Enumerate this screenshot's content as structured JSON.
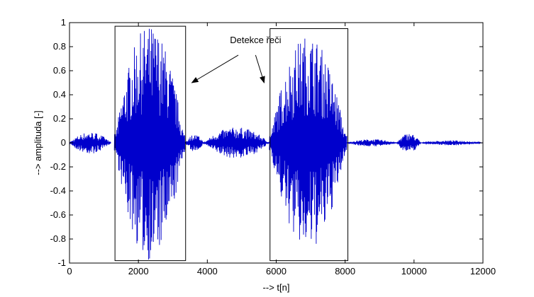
{
  "chart_data": {
    "type": "line",
    "title": "",
    "xlabel": "--> t[n]",
    "ylabel": "--> amplituda [-]",
    "xlim": [
      0,
      12000
    ],
    "ylim": [
      -1,
      1
    ],
    "xticks": [
      0,
      2000,
      4000,
      6000,
      8000,
      10000,
      12000
    ],
    "yticks": [
      -1,
      -0.8,
      -0.6,
      -0.4,
      -0.2,
      0,
      0.2,
      0.4,
      0.6,
      0.8,
      1
    ],
    "grid": false,
    "series": [
      {
        "name": "",
        "color": "#0000cc",
        "segments": [
          {
            "start": 0,
            "end": 1200,
            "amplitude": 0.09
          },
          {
            "start": 1300,
            "end": 3350,
            "amplitude": 0.98
          },
          {
            "start": 3350,
            "end": 3900,
            "amplitude": 0.07
          },
          {
            "start": 3900,
            "end": 5800,
            "amplitude": 0.13
          },
          {
            "start": 5800,
            "end": 8050,
            "amplitude": 0.9
          },
          {
            "start": 8050,
            "end": 9500,
            "amplitude": 0.03
          },
          {
            "start": 9500,
            "end": 10200,
            "amplitude": 0.08
          },
          {
            "start": 10200,
            "end": 12000,
            "amplitude": 0.02
          }
        ]
      }
    ],
    "annotations": [
      {
        "text": "Detekce řeči",
        "x": 5400,
        "y": 0.83
      },
      {
        "type": "box",
        "x0": 1320,
        "x1": 3370,
        "y0": -0.98,
        "y1": 0.97
      },
      {
        "type": "box",
        "x0": 5820,
        "x1": 8080,
        "y0": -0.98,
        "y1": 0.95
      },
      {
        "type": "arrow",
        "from": [
          4900,
          0.73
        ],
        "to": [
          3550,
          0.5
        ]
      },
      {
        "type": "arrow",
        "from": [
          5400,
          0.73
        ],
        "to": [
          5650,
          0.5
        ]
      }
    ]
  }
}
